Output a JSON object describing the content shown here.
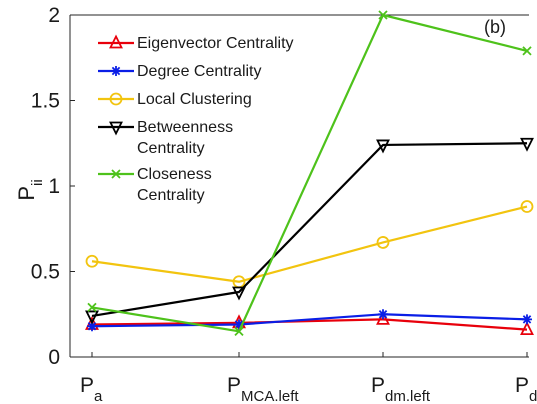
{
  "chart_data": {
    "type": "line",
    "panel_label": "(b)",
    "ylabel": {
      "main": "P",
      "sub": "ii"
    },
    "categories": [
      {
        "main": "P",
        "sub": "a"
      },
      {
        "main": "P",
        "sub": "MCA.left"
      },
      {
        "main": "P",
        "sub": "dm.left"
      },
      {
        "main": "P",
        "sub": "d"
      }
    ],
    "ylim": [
      0,
      2
    ],
    "yticks": [
      "0",
      "0.5",
      "1",
      "1.5",
      "2"
    ],
    "legend_position": "top-left",
    "grid": false,
    "series": [
      {
        "name": "Eigenvector Centrality",
        "label_lines": [
          "Eigenvector Centrality"
        ],
        "color": "#e8000b",
        "marker": "triangle-up",
        "values": [
          0.19,
          0.2,
          0.22,
          0.16
        ]
      },
      {
        "name": "Degree Centrality",
        "label_lines": [
          "Degree Centrality"
        ],
        "color": "#0a1ee6",
        "marker": "asterisk",
        "values": [
          0.18,
          0.19,
          0.25,
          0.22
        ]
      },
      {
        "name": "Local Clustering",
        "label_lines": [
          "Local Clustering"
        ],
        "color": "#f2c40f",
        "marker": "circle",
        "values": [
          0.56,
          0.44,
          0.67,
          0.88
        ]
      },
      {
        "name": "Betweenness Centrality",
        "label_lines": [
          "Betweenness",
          "Centrality"
        ],
        "color": "#000000",
        "marker": "triangle-down",
        "values": [
          0.24,
          0.38,
          1.24,
          1.25
        ]
      },
      {
        "name": "Closeness Centrality",
        "label_lines": [
          "Closeness",
          "Centrality"
        ],
        "color": "#4ec21b",
        "marker": "x",
        "values": [
          0.29,
          0.15,
          2.0,
          1.79
        ]
      }
    ]
  }
}
